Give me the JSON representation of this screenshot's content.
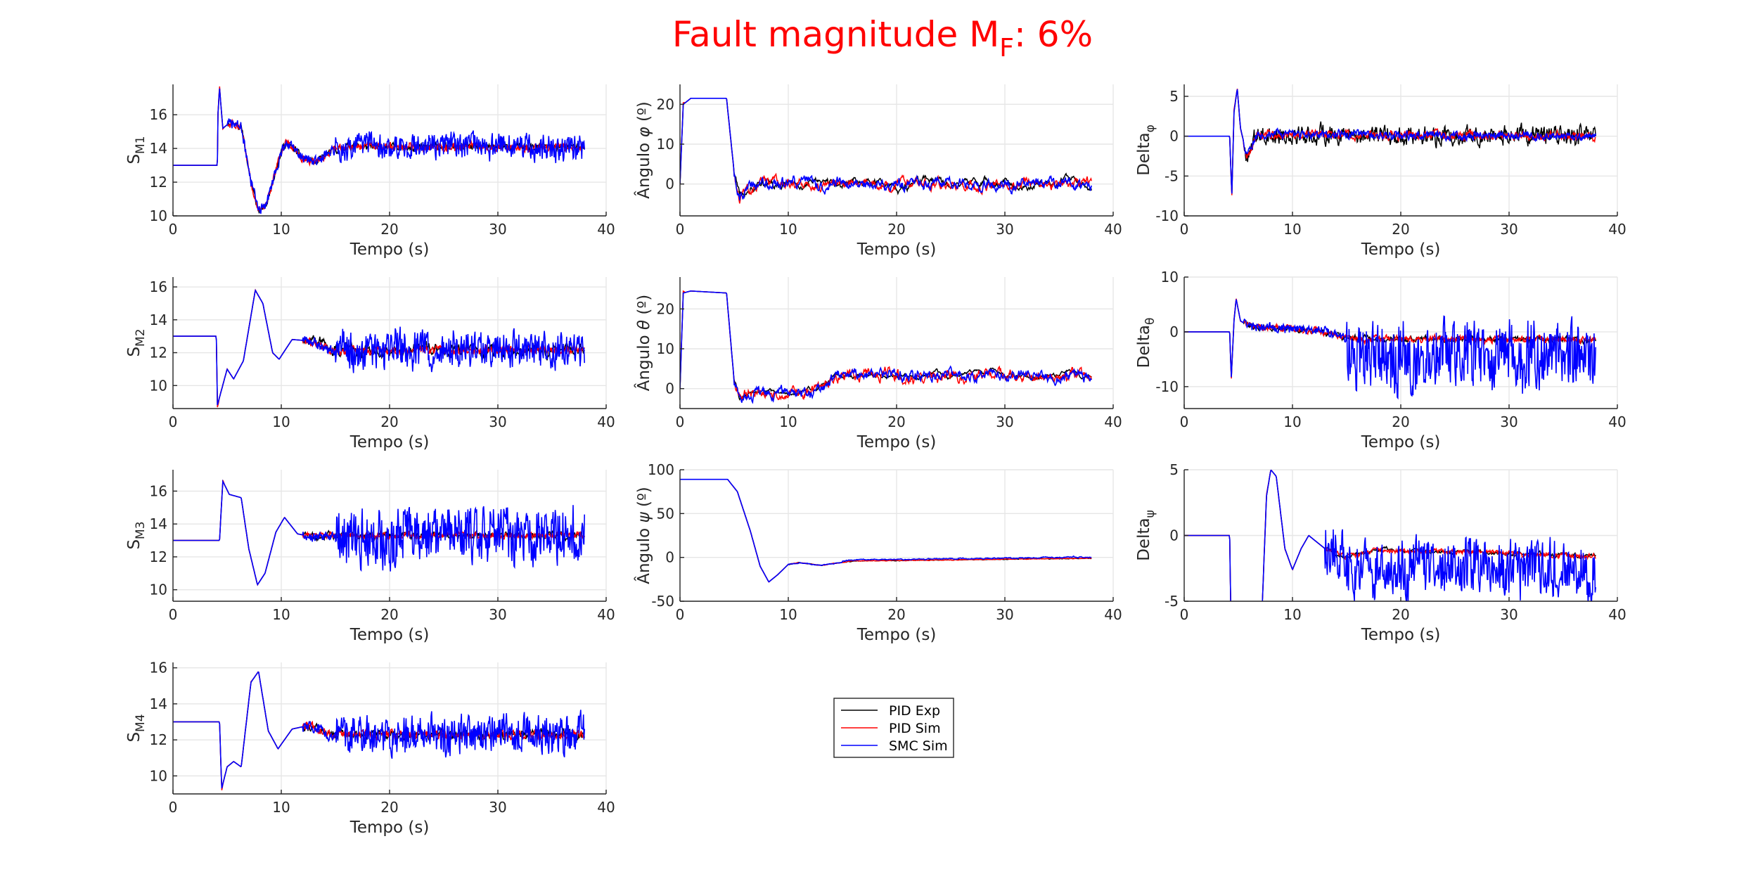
{
  "figure": {
    "title_main": "Fault magnitude M",
    "title_sub": "F",
    "title_tail": ": 6%",
    "title_color": "#ff0000"
  },
  "legend": {
    "entries": [
      {
        "label": "PID Exp",
        "color": "#000000"
      },
      {
        "label": "PID Sim",
        "color": "#ff0000"
      },
      {
        "label": "SMC Sim",
        "color": "#0000ff"
      }
    ]
  },
  "chart_data": [
    {
      "type": "line",
      "id": "sm1",
      "ylabel": {
        "main": "S",
        "sub": "M1"
      },
      "xlabel": "Tempo (s)",
      "xlim": [
        0,
        40
      ],
      "ylim": [
        10,
        17.8
      ],
      "xticks": [
        0,
        10,
        20,
        30,
        40
      ],
      "yticks": [
        10,
        12,
        14,
        16
      ],
      "grid": true
    },
    {
      "type": "line",
      "id": "phi",
      "ylabel": {
        "main": "Ângulo ",
        "greek": "φ",
        "unit": " (º)"
      },
      "xlabel": "Tempo (s)",
      "xlim": [
        0,
        40
      ],
      "ylim": [
        -8,
        25
      ],
      "xticks": [
        0,
        10,
        20,
        30,
        40
      ],
      "yticks": [
        0,
        10,
        20
      ],
      "grid": true
    },
    {
      "type": "line",
      "id": "dphi",
      "ylabel": {
        "main": "Delta",
        "sub": "φ"
      },
      "xlabel": "Tempo (s)",
      "xlim": [
        0,
        40
      ],
      "ylim": [
        -10,
        6.5
      ],
      "xticks": [
        0,
        10,
        20,
        30,
        40
      ],
      "yticks": [
        -10,
        -5,
        0,
        5
      ],
      "grid": true
    },
    {
      "type": "line",
      "id": "sm2",
      "ylabel": {
        "main": "S",
        "sub": "M2"
      },
      "xlabel": "Tempo (s)",
      "xlim": [
        0,
        40
      ],
      "ylim": [
        8.6,
        16.6
      ],
      "xticks": [
        0,
        10,
        20,
        30,
        40
      ],
      "yticks": [
        10,
        12,
        14,
        16
      ],
      "grid": true
    },
    {
      "type": "line",
      "id": "theta",
      "ylabel": {
        "main": "Ângulo ",
        "greek": "θ",
        "unit": " (º)"
      },
      "xlabel": "Tempo (s)",
      "xlim": [
        0,
        40
      ],
      "ylim": [
        -5,
        28
      ],
      "xticks": [
        0,
        10,
        20,
        30,
        40
      ],
      "yticks": [
        0,
        10,
        20
      ],
      "grid": true
    },
    {
      "type": "line",
      "id": "dtheta",
      "ylabel": {
        "main": "Delta",
        "sub": "θ"
      },
      "xlabel": "Tempo (s)",
      "xlim": [
        0,
        40
      ],
      "ylim": [
        -14,
        10
      ],
      "xticks": [
        0,
        10,
        20,
        30,
        40
      ],
      "yticks": [
        -10,
        0,
        10
      ],
      "grid": true
    },
    {
      "type": "line",
      "id": "sm3",
      "ylabel": {
        "main": "S",
        "sub": "M3"
      },
      "xlabel": "Tempo (s)",
      "xlim": [
        0,
        40
      ],
      "ylim": [
        9.3,
        17.3
      ],
      "xticks": [
        0,
        10,
        20,
        30,
        40
      ],
      "yticks": [
        10,
        12,
        14,
        16
      ],
      "grid": true
    },
    {
      "type": "line",
      "id": "psi",
      "ylabel": {
        "main": "Ângulo ",
        "greek": "ψ",
        "unit": " (º)"
      },
      "xlabel": "Tempo (s)",
      "xlim": [
        0,
        40
      ],
      "ylim": [
        -50,
        100
      ],
      "xticks": [
        0,
        10,
        20,
        30,
        40
      ],
      "yticks": [
        -50,
        0,
        50,
        100
      ],
      "grid": true
    },
    {
      "type": "line",
      "id": "dpsi",
      "ylabel": {
        "main": "Delta",
        "sub": "ψ"
      },
      "xlabel": "Tempo (s)",
      "xlim": [
        0,
        40
      ],
      "ylim": [
        -5,
        5
      ],
      "xticks": [
        0,
        10,
        20,
        30,
        40
      ],
      "yticks": [
        -5,
        0,
        5
      ],
      "grid": true
    },
    {
      "type": "line",
      "id": "sm4",
      "ylabel": {
        "main": "S",
        "sub": "M4"
      },
      "xlabel": "Tempo (s)",
      "xlim": [
        0,
        40
      ],
      "ylim": [
        9,
        16.3
      ],
      "xticks": [
        0,
        10,
        20,
        30,
        40
      ],
      "yticks": [
        10,
        12,
        14,
        16
      ],
      "grid": true
    }
  ]
}
